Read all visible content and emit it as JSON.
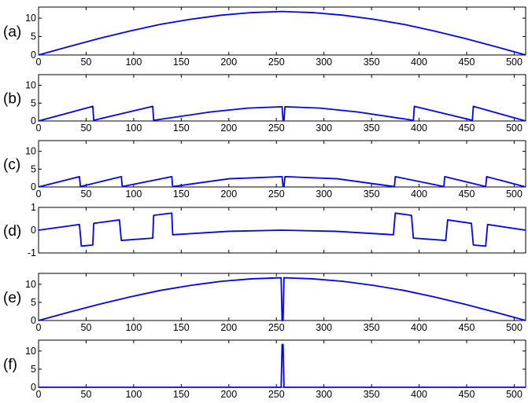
{
  "colors": {
    "series": "#0000ff",
    "axes": "#000000",
    "background": "#ffffff"
  },
  "chart_data": [
    {
      "type": "line",
      "panel": "(a)",
      "xlim": [
        0,
        512
      ],
      "ylim": [
        0,
        13
      ],
      "xticks": [
        0,
        50,
        100,
        150,
        200,
        250,
        300,
        350,
        400,
        450,
        500
      ],
      "yticks": [
        0,
        5,
        10
      ],
      "show_xtick_labels": true,
      "series": [
        {
          "x": [
            0,
            32,
            64,
            96,
            128,
            160,
            192,
            224,
            256,
            288,
            320,
            352,
            384,
            416,
            448,
            480,
            512
          ],
          "values": [
            0,
            2.3,
            4.5,
            6.5,
            8.3,
            9.7,
            10.8,
            11.5,
            11.8,
            11.5,
            10.8,
            9.7,
            8.3,
            6.5,
            4.5,
            2.3,
            0
          ]
        }
      ]
    },
    {
      "type": "line",
      "panel": "(b)",
      "xlim": [
        0,
        512
      ],
      "ylim": [
        0,
        13
      ],
      "xticks": [
        0,
        50,
        100,
        150,
        200,
        250,
        300,
        350,
        400,
        450,
        500
      ],
      "yticks": [
        0,
        5,
        10
      ],
      "show_xtick_labels": true,
      "series": [
        {
          "x": [
            0,
            57,
            58,
            120,
            121,
            180,
            220,
            256,
            257,
            258,
            259,
            296,
            336,
            394,
            395,
            456,
            457,
            512
          ],
          "values": [
            0,
            4.1,
            0.2,
            4.1,
            0.2,
            2.5,
            3.6,
            4.0,
            0.1,
            0.1,
            4.0,
            3.6,
            2.5,
            0.2,
            4.1,
            0.2,
            4.1,
            0
          ]
        }
      ]
    },
    {
      "type": "line",
      "panel": "(c)",
      "xlim": [
        0,
        512
      ],
      "ylim": [
        0,
        13
      ],
      "xticks": [
        0,
        50,
        100,
        150,
        200,
        250,
        300,
        350,
        400,
        450,
        500
      ],
      "yticks": [
        0,
        5,
        10
      ],
      "show_xtick_labels": true,
      "series": [
        {
          "x": [
            0,
            43,
            44,
            87,
            88,
            140,
            141,
            200,
            256,
            257,
            258,
            259,
            314,
            374,
            375,
            426,
            427,
            470,
            471,
            512
          ],
          "values": [
            0,
            2.9,
            0.1,
            2.9,
            0.1,
            2.9,
            0.1,
            2.3,
            2.9,
            0.1,
            0.1,
            2.9,
            2.3,
            0.1,
            2.9,
            0.1,
            2.9,
            0.1,
            2.9,
            0
          ]
        }
      ]
    },
    {
      "type": "line",
      "panel": "(d)",
      "xlim": [
        0,
        512
      ],
      "ylim": [
        -1,
        1
      ],
      "xticks": [
        0,
        50,
        100,
        150,
        200,
        250,
        300,
        350,
        400,
        450,
        500
      ],
      "yticks": [
        -1,
        0,
        1
      ],
      "show_xtick_labels": false,
      "series": [
        {
          "x": [
            0,
            43,
            45,
            57,
            58,
            85,
            87,
            120,
            121,
            140,
            141,
            200,
            256,
            312,
            373,
            375,
            392,
            394,
            428,
            430,
            455,
            457,
            470,
            472,
            512
          ],
          "values": [
            0,
            0.25,
            -0.7,
            -0.65,
            0.3,
            0.45,
            -0.45,
            -0.35,
            0.65,
            0.75,
            -0.2,
            -0.05,
            0,
            -0.05,
            -0.2,
            0.75,
            0.65,
            -0.35,
            -0.45,
            0.45,
            0.3,
            -0.65,
            -0.7,
            0.25,
            0
          ]
        }
      ]
    },
    {
      "type": "line",
      "panel": "(e)",
      "xlim": [
        0,
        512
      ],
      "ylim": [
        0,
        13
      ],
      "xticks": [
        0,
        50,
        100,
        150,
        200,
        250,
        300,
        350,
        400,
        450,
        500
      ],
      "yticks": [
        0,
        5,
        10
      ],
      "show_xtick_labels": true,
      "series": [
        {
          "x": [
            0,
            32,
            64,
            96,
            128,
            160,
            192,
            224,
            255,
            256,
            257,
            258,
            288,
            320,
            352,
            384,
            416,
            448,
            480,
            512
          ],
          "values": [
            0,
            2.3,
            4.5,
            6.5,
            8.3,
            9.7,
            10.8,
            11.5,
            11.8,
            0,
            0,
            11.8,
            11.5,
            10.8,
            9.7,
            8.3,
            6.5,
            4.5,
            2.3,
            0
          ]
        }
      ]
    },
    {
      "type": "line",
      "panel": "(f)",
      "xlim": [
        0,
        512
      ],
      "ylim": [
        0,
        13
      ],
      "xticks": [
        0,
        50,
        100,
        150,
        200,
        250,
        300,
        350,
        400,
        450,
        500
      ],
      "yticks": [
        0,
        5,
        10
      ],
      "show_xtick_labels": true,
      "series": [
        {
          "x": [
            0,
            255,
            256,
            257,
            258,
            512
          ],
          "values": [
            0,
            0,
            11.8,
            11.8,
            0,
            0
          ]
        }
      ]
    }
  ]
}
